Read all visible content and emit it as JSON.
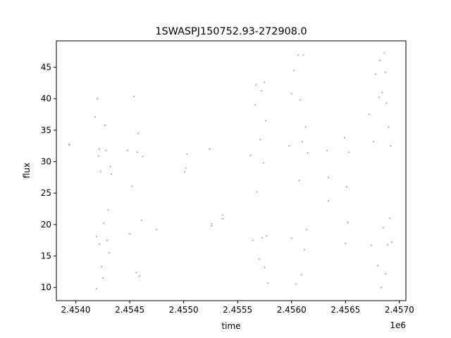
{
  "chart_data": {
    "type": "scatter",
    "title": "1SWASPJ150752.93-272908.0",
    "xlabel": "time",
    "ylabel": "flux",
    "x_offset_label": "1e6",
    "xlim": [
      2453820,
      2457060
    ],
    "ylim": [
      7.9,
      49.2
    ],
    "x_ticks": [
      {
        "value": 2454000,
        "label": "2.4540"
      },
      {
        "value": 2454500,
        "label": "2.4545"
      },
      {
        "value": 2455000,
        "label": "2.4550"
      },
      {
        "value": 2455500,
        "label": "2.4555"
      },
      {
        "value": 2456000,
        "label": "2.4560"
      },
      {
        "value": 2456500,
        "label": "2.4565"
      },
      {
        "value": 2457000,
        "label": "2.4570"
      }
    ],
    "y_ticks": [
      {
        "value": 10,
        "label": "10"
      },
      {
        "value": 15,
        "label": "15"
      },
      {
        "value": 20,
        "label": "20"
      },
      {
        "value": 25,
        "label": "25"
      },
      {
        "value": 30,
        "label": "30"
      },
      {
        "value": 35,
        "label": "35"
      },
      {
        "value": 40,
        "label": "40"
      },
      {
        "value": 45,
        "label": "45"
      }
    ],
    "grid": false,
    "marker_color": "#1f77b4",
    "series": [
      {
        "values": [
          [
            2453940,
            32.8
          ],
          [
            2453940,
            32.6
          ],
          [
            2454180,
            37.1
          ],
          [
            2454190,
            18.1
          ],
          [
            2454200,
            40.0
          ],
          [
            2454210,
            30.9
          ],
          [
            2454220,
            16.9
          ],
          [
            2454230,
            28.4
          ],
          [
            2454240,
            13.3
          ],
          [
            2454250,
            11.5
          ],
          [
            2454260,
            20.2
          ],
          [
            2454270,
            35.8
          ],
          [
            2454280,
            31.8
          ],
          [
            2454290,
            17.5
          ],
          [
            2454300,
            22.3
          ],
          [
            2454310,
            15.5
          ],
          [
            2454320,
            29.2
          ],
          [
            2454330,
            28.0
          ],
          [
            2454190,
            9.8
          ],
          [
            2454220,
            32.0
          ],
          [
            2454480,
            31.8
          ],
          [
            2454500,
            18.5
          ],
          [
            2454520,
            26.1
          ],
          [
            2454540,
            40.4
          ],
          [
            2454560,
            12.4
          ],
          [
            2454570,
            31.5
          ],
          [
            2454580,
            34.5
          ],
          [
            2454590,
            11.8
          ],
          [
            2454610,
            20.7
          ],
          [
            2454620,
            30.8
          ],
          [
            2454750,
            19.2
          ],
          [
            2455010,
            28.4
          ],
          [
            2455030,
            31.2
          ],
          [
            2455020,
            29.0
          ],
          [
            2455240,
            32.0
          ],
          [
            2455260,
            20.1
          ],
          [
            2455260,
            19.8
          ],
          [
            2455360,
            21.5
          ],
          [
            2455360,
            20.9
          ],
          [
            2455620,
            31.0
          ],
          [
            2455640,
            17.5
          ],
          [
            2455660,
            39.0
          ],
          [
            2455670,
            42.2
          ],
          [
            2455680,
            25.2
          ],
          [
            2455700,
            14.5
          ],
          [
            2455710,
            33.5
          ],
          [
            2455720,
            41.3
          ],
          [
            2455730,
            17.9
          ],
          [
            2455740,
            29.8
          ],
          [
            2455750,
            13.2
          ],
          [
            2455760,
            36.5
          ],
          [
            2455770,
            18.2
          ],
          [
            2455780,
            10.7
          ],
          [
            2455750,
            42.6
          ],
          [
            2455980,
            32.5
          ],
          [
            2456000,
            17.8
          ],
          [
            2456020,
            44.5
          ],
          [
            2456040,
            10.5
          ],
          [
            2456060,
            46.9
          ],
          [
            2456070,
            27.0
          ],
          [
            2456080,
            39.8
          ],
          [
            2456090,
            12.0
          ],
          [
            2456100,
            33.2
          ],
          [
            2456110,
            46.9
          ],
          [
            2456120,
            16.0
          ],
          [
            2456130,
            35.5
          ],
          [
            2456140,
            19.2
          ],
          [
            2456150,
            31.4
          ],
          [
            2456000,
            40.8
          ],
          [
            2456330,
            31.8
          ],
          [
            2456340,
            23.8
          ],
          [
            2456340,
            27.5
          ],
          [
            2456490,
            33.8
          ],
          [
            2456500,
            17.0
          ],
          [
            2456510,
            26.0
          ],
          [
            2456520,
            20.3
          ],
          [
            2456530,
            31.5
          ],
          [
            2456720,
            37.5
          ],
          [
            2456740,
            16.7
          ],
          [
            2456760,
            33.2
          ],
          [
            2456780,
            43.9
          ],
          [
            2456800,
            13.5
          ],
          [
            2456820,
            46.1
          ],
          [
            2456830,
            10.0
          ],
          [
            2456840,
            41.0
          ],
          [
            2456850,
            19.5
          ],
          [
            2456860,
            47.3
          ],
          [
            2456870,
            12.2
          ],
          [
            2456880,
            39.3
          ],
          [
            2456890,
            16.8
          ],
          [
            2456900,
            35.5
          ],
          [
            2456910,
            21.0
          ],
          [
            2456920,
            32.5
          ],
          [
            2456930,
            17.2
          ],
          [
            2456810,
            40.2
          ],
          [
            2456870,
            44.2
          ]
        ]
      }
    ]
  }
}
